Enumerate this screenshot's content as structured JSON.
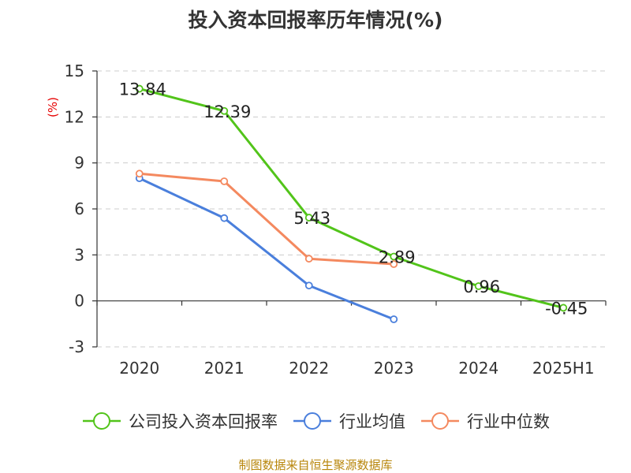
{
  "title": "投入资本回报率历年情况(%)",
  "source": "制图数据来自恒生聚源数据库",
  "chart_data": {
    "type": "line",
    "title": "投入资本回报率历年情况(%)",
    "ylabel": "(%)",
    "xlabel": "",
    "categories": [
      "2020",
      "2021",
      "2022",
      "2023",
      "2024",
      "2025H1"
    ],
    "ylim": [
      -3,
      15
    ],
    "yticks": [
      -3,
      0,
      3,
      6,
      9,
      12,
      15
    ],
    "grid": "horizontal-dashed",
    "legend_position": "bottom",
    "series": [
      {
        "name": "公司投入资本回报率",
        "color": "#52c41a",
        "values": [
          13.84,
          12.39,
          5.43,
          2.89,
          0.96,
          -0.45
        ],
        "labels": true
      },
      {
        "name": "行业均值",
        "color": "#4a7fdc",
        "values": [
          8.0,
          5.4,
          1.0,
          -1.2,
          null,
          null
        ],
        "labels": false
      },
      {
        "name": "行业中位数",
        "color": "#f4895f",
        "values": [
          8.3,
          7.8,
          2.75,
          2.4,
          null,
          null
        ],
        "labels": false
      }
    ]
  }
}
